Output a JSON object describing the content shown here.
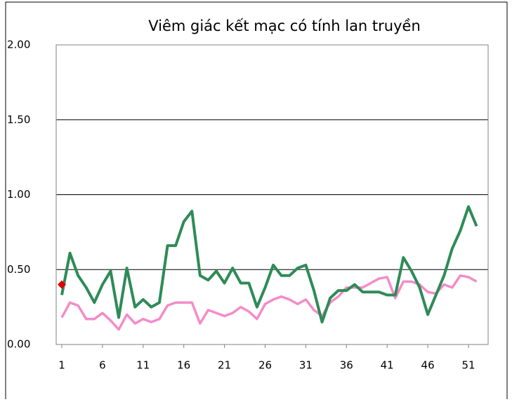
{
  "chart_data": {
    "type": "line",
    "title": "Viêm giác kết mạc có tính lan truyền",
    "categories": [
      1,
      null,
      null,
      null,
      null,
      6,
      null,
      null,
      null,
      null,
      11,
      null,
      null,
      null,
      null,
      16,
      null,
      null,
      null,
      null,
      21,
      null,
      null,
      null,
      null,
      26,
      null,
      null,
      null,
      null,
      31,
      null,
      null,
      null,
      null,
      36,
      null,
      null,
      null,
      null,
      41,
      null,
      null,
      null,
      null,
      46,
      null,
      null,
      null,
      null,
      51,
      null
    ],
    "series": [
      {
        "color": "#f48cc8",
        "marker": "none",
        "values": [
          0.18,
          0.28,
          0.26,
          0.17,
          0.17,
          0.21,
          0.16,
          0.1,
          0.2,
          0.14,
          0.17,
          0.15,
          0.17,
          0.26,
          0.28,
          0.28,
          0.28,
          0.14,
          0.23,
          0.21,
          0.19,
          0.21,
          0.25,
          0.22,
          0.17,
          0.27,
          0.3,
          0.32,
          0.3,
          0.27,
          0.3,
          0.23,
          0.19,
          0.28,
          0.32,
          0.38,
          0.38,
          0.38,
          0.41,
          0.44,
          0.45,
          0.31,
          0.42,
          0.42,
          0.4,
          0.35,
          0.34,
          0.4,
          0.38,
          0.46,
          0.45,
          0.42
        ]
      },
      {
        "color": "#2e8b57",
        "marker": "none",
        "values": [
          0.33,
          0.61,
          0.46,
          0.38,
          0.28,
          0.4,
          0.49,
          0.18,
          0.51,
          0.25,
          0.3,
          0.25,
          0.28,
          0.66,
          0.66,
          0.82,
          0.89,
          0.46,
          0.43,
          0.49,
          0.41,
          0.51,
          0.41,
          0.41,
          0.25,
          0.38,
          0.53,
          0.46,
          0.46,
          0.51,
          0.53,
          0.36,
          0.15,
          0.31,
          0.36,
          0.36,
          0.4,
          0.35,
          0.35,
          0.35,
          0.33,
          0.33,
          0.58,
          0.49,
          0.38,
          0.2,
          0.33,
          0.46,
          0.64,
          0.76,
          0.92,
          0.79
        ]
      },
      {
        "color": "#e00000",
        "marker": "diamond",
        "values": [
          0.4,
          null,
          null,
          null,
          null,
          null,
          null,
          null,
          null,
          null,
          null,
          null,
          null,
          null,
          null,
          null,
          null,
          null,
          null,
          null,
          null,
          null,
          null,
          null,
          null,
          null,
          null,
          null,
          null,
          null,
          null,
          null,
          null,
          null,
          null,
          null,
          null,
          null,
          null,
          null,
          null,
          null,
          null,
          null,
          null,
          null,
          null,
          null,
          null,
          null,
          null,
          null
        ]
      }
    ],
    "ylim": [
      0,
      2
    ],
    "yticks": [
      {
        "value": 0,
        "label": "0.00"
      },
      {
        "value": 0.5,
        "label": "0.50"
      },
      {
        "value": 1,
        "label": "1.00"
      },
      {
        "value": 1.5,
        "label": "1.50"
      },
      {
        "value": 2,
        "label": "2.00"
      }
    ],
    "grid": true
  }
}
